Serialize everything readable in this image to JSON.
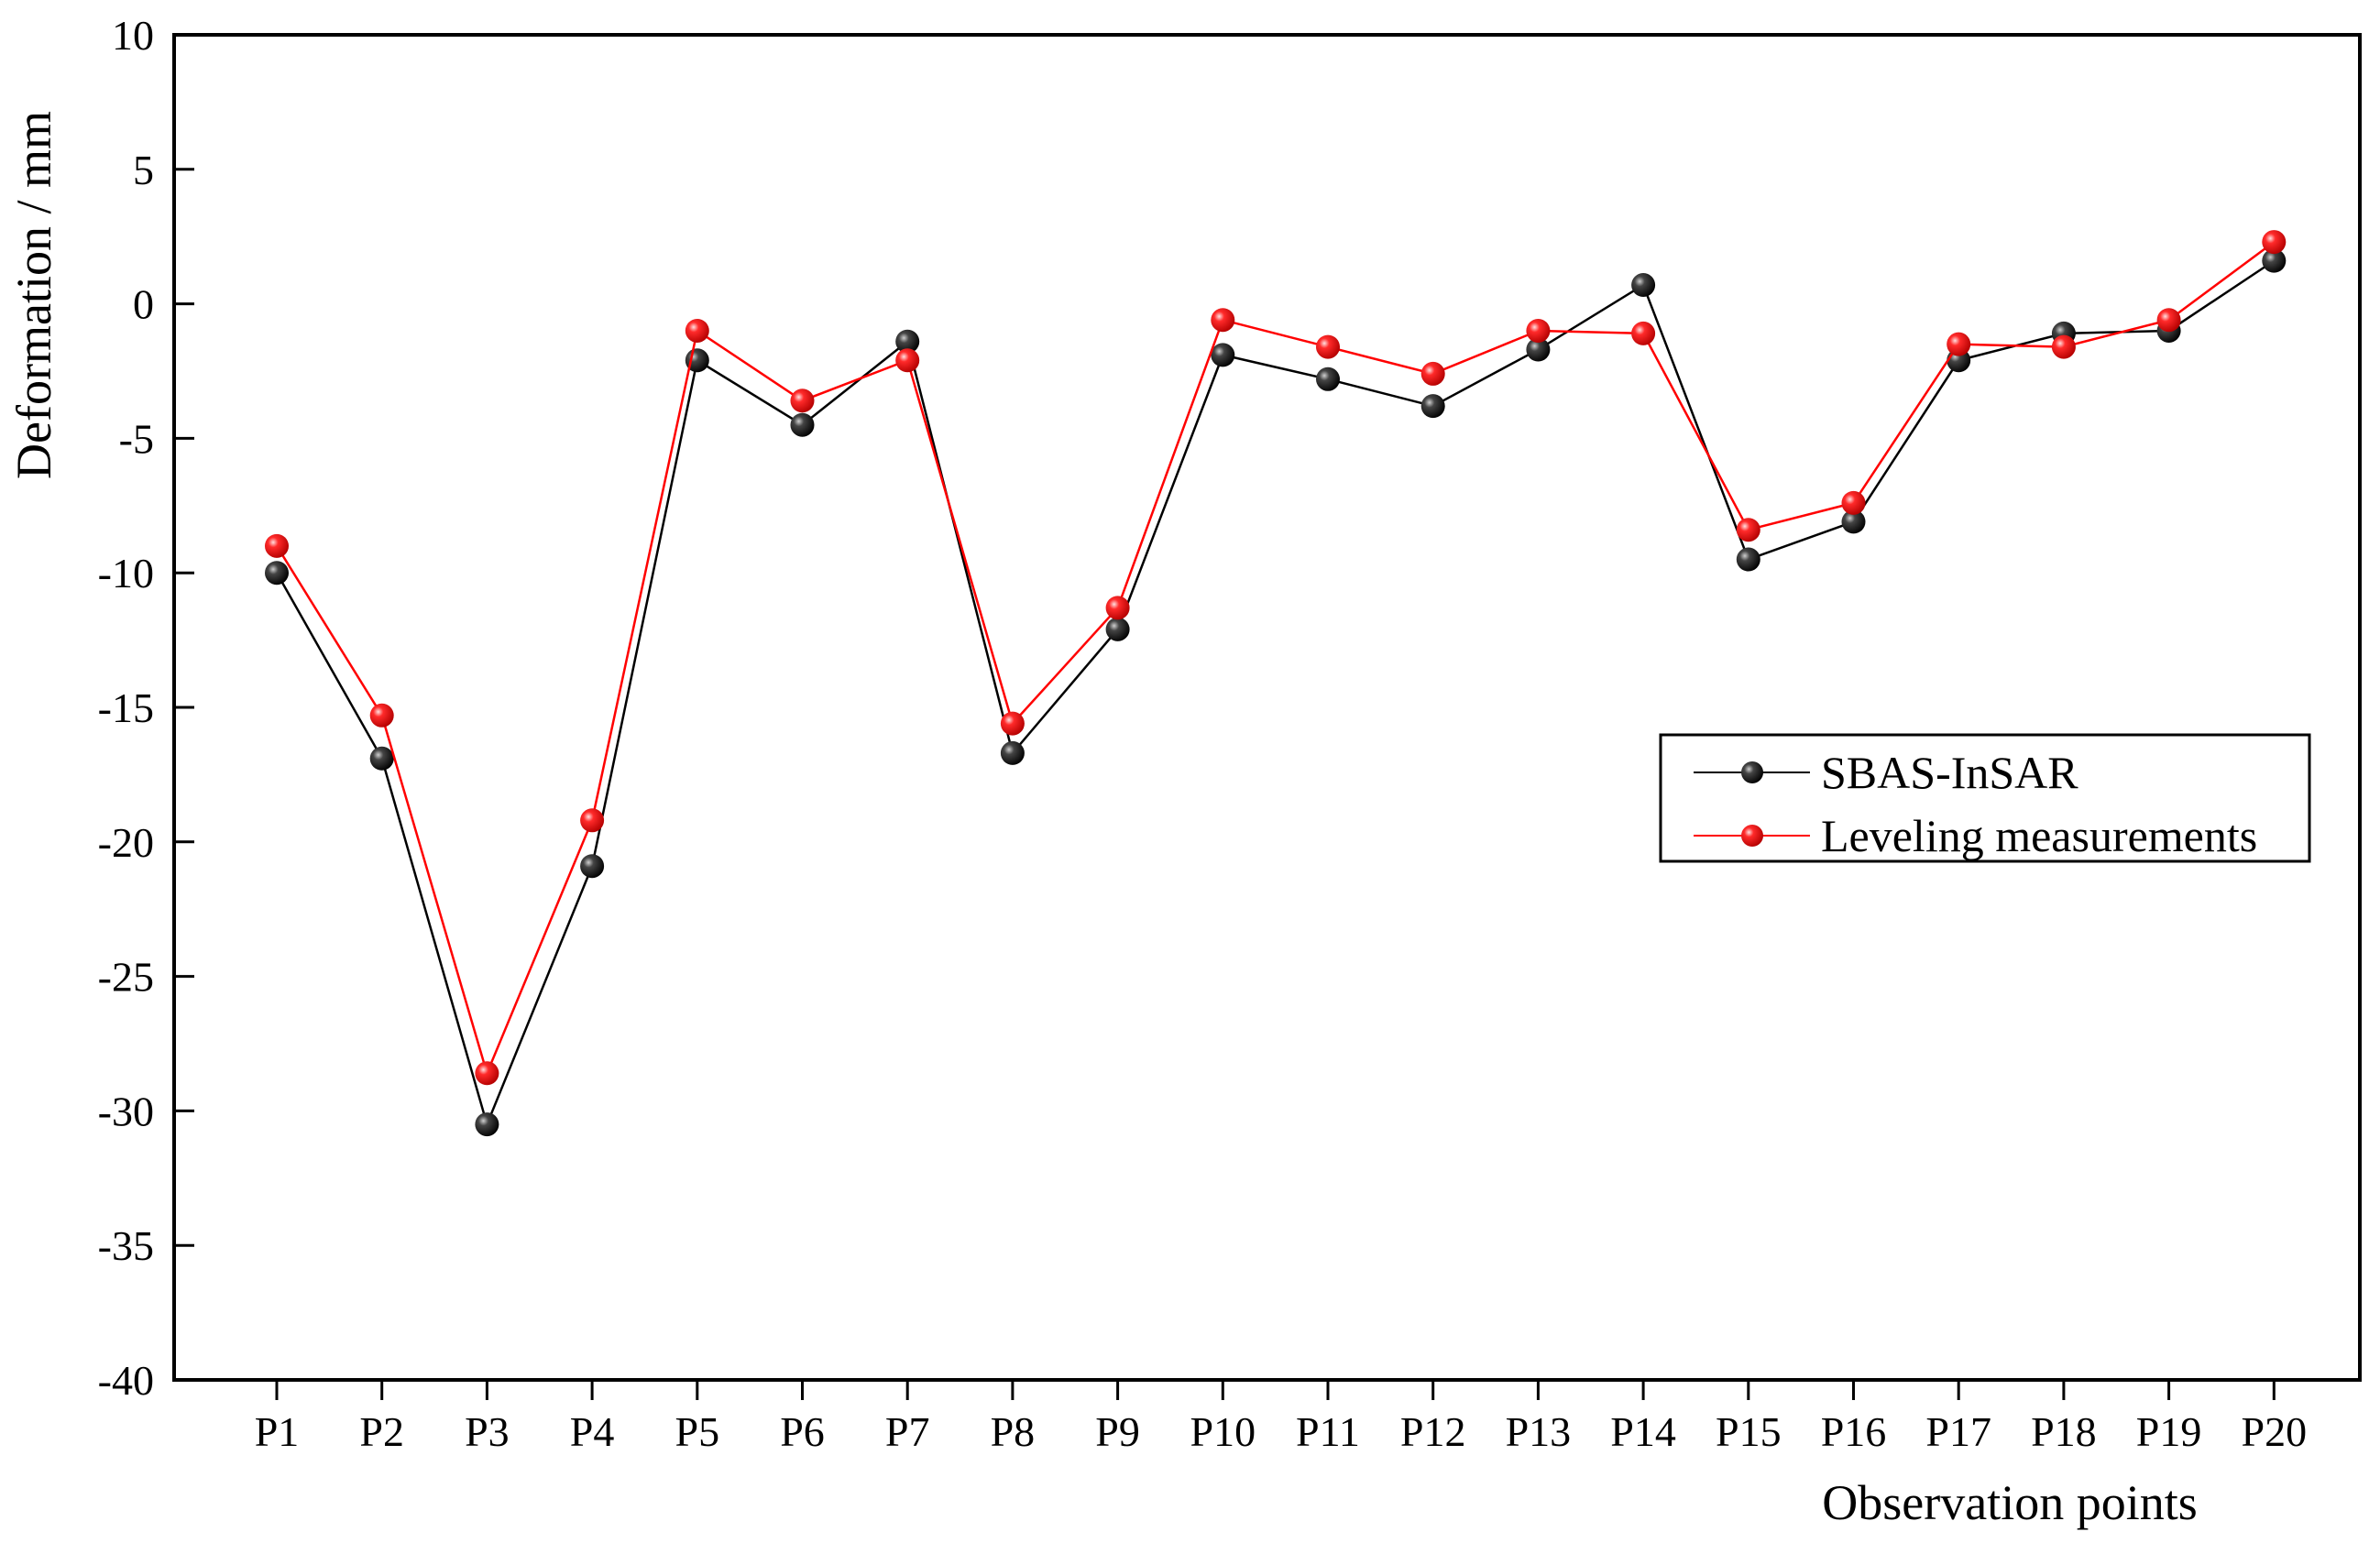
{
  "chart_data": {
    "type": "line",
    "title": "",
    "xlabel": "Observation points",
    "ylabel": "Deformation / mm",
    "ylim": [
      -40,
      10
    ],
    "yticks": [
      10,
      5,
      0,
      -5,
      -10,
      -15,
      -20,
      -25,
      -30,
      -35,
      -40
    ],
    "categories": [
      "P1",
      "P2",
      "P3",
      "P4",
      "P5",
      "P6",
      "P7",
      "P8",
      "P9",
      "P10",
      "P11",
      "P12",
      "P13",
      "P14",
      "P15",
      "P16",
      "P17",
      "P18",
      "P19",
      "P20"
    ],
    "grid": false,
    "legend_position": "right",
    "series": [
      {
        "name": "SBAS-InSAR",
        "color": "#000000",
        "marker_color": "#111111",
        "values": [
          -10.0,
          -16.9,
          -30.5,
          -20.9,
          -2.1,
          -4.5,
          -1.4,
          -16.7,
          -12.1,
          -1.9,
          -2.8,
          -3.8,
          -1.7,
          0.7,
          -9.5,
          -8.1,
          -2.1,
          -1.1,
          -1.0,
          1.6
        ]
      },
      {
        "name": "Leveling measurements",
        "color": "#ff0000",
        "marker_color": "#ff1a1a",
        "values": [
          -9.0,
          -15.3,
          -28.6,
          -19.2,
          -1.0,
          -3.6,
          -2.1,
          -15.6,
          -11.3,
          -0.6,
          -1.6,
          -2.6,
          -1.0,
          -1.1,
          -8.4,
          -7.4,
          -1.5,
          -1.6,
          -0.6,
          2.3
        ]
      }
    ]
  }
}
